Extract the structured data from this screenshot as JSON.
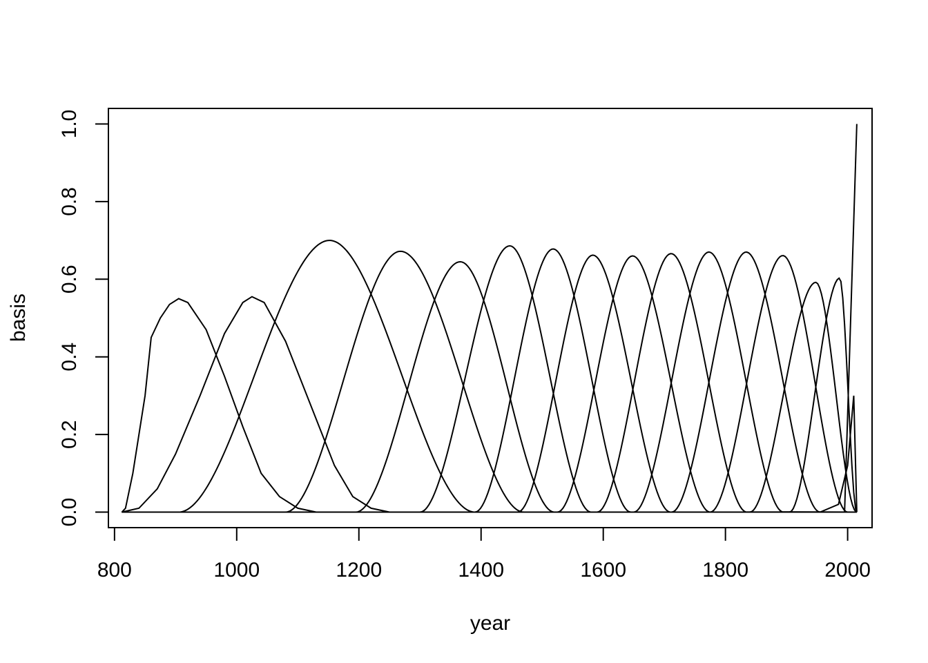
{
  "chart_data": {
    "type": "line",
    "title": "",
    "xlabel": "year",
    "ylabel": "basis",
    "xlim": [
      790,
      2040
    ],
    "ylim": [
      -0.04,
      1.04
    ],
    "x_ticks": [
      800,
      1000,
      1200,
      1400,
      1600,
      1800,
      2000
    ],
    "y_ticks": [
      0.0,
      0.2,
      0.4,
      0.6,
      0.8,
      1.0
    ],
    "x_tick_labels": [
      "800",
      "1000",
      "1200",
      "1400",
      "1600",
      "1800",
      "2000"
    ],
    "y_tick_labels": [
      "0.0",
      "0.2",
      "0.4",
      "0.6",
      "0.8",
      "1.0"
    ],
    "grid": false,
    "x_range": [
      812,
      2015
    ],
    "series": [
      {
        "values": [
          [
            812,
            0
          ],
          [
            818,
            0.01
          ],
          [
            830,
            0.1
          ],
          [
            850,
            0.3
          ],
          [
            860,
            0.45
          ],
          [
            875,
            0.5
          ],
          [
            890,
            0.535
          ],
          [
            905,
            0.55
          ],
          [
            920,
            0.54
          ],
          [
            950,
            0.47
          ],
          [
            980,
            0.35
          ],
          [
            1010,
            0.22
          ],
          [
            1040,
            0.1
          ],
          [
            1070,
            0.04
          ],
          [
            1100,
            0.01
          ],
          [
            1130,
            0
          ]
        ]
      },
      {
        "values": [
          [
            812,
            0
          ],
          [
            840,
            0.01
          ],
          [
            870,
            0.06
          ],
          [
            900,
            0.15
          ],
          [
            940,
            0.3
          ],
          [
            980,
            0.46
          ],
          [
            1010,
            0.54
          ],
          [
            1025,
            0.555
          ],
          [
            1045,
            0.54
          ],
          [
            1080,
            0.44
          ],
          [
            1120,
            0.28
          ],
          [
            1160,
            0.12
          ],
          [
            1190,
            0.04
          ],
          [
            1220,
            0.01
          ],
          [
            1250,
            0
          ]
        ]
      },
      {
        "peak": [
          1152,
          0.7
        ],
        "support": [
          905,
          1390
        ]
      },
      {
        "peak": [
          1268,
          0.672
        ],
        "support": [
          1080,
          1470
        ]
      },
      {
        "peak": [
          1366,
          0.645
        ],
        "support": [
          1195,
          1520
        ]
      },
      {
        "peak": [
          1447,
          0.686
        ],
        "support": [
          1300,
          1580
        ]
      },
      {
        "peak": [
          1518,
          0.678
        ],
        "support": [
          1390,
          1645
        ]
      },
      {
        "peak": [
          1583,
          0.662
        ],
        "support": [
          1460,
          1710
        ]
      },
      {
        "peak": [
          1648,
          0.66
        ],
        "support": [
          1525,
          1775
        ]
      },
      {
        "peak": [
          1711,
          0.666
        ],
        "support": [
          1590,
          1835
        ]
      },
      {
        "peak": [
          1773,
          0.67
        ],
        "support": [
          1650,
          1895
        ]
      },
      {
        "peak": [
          1834,
          0.67
        ],
        "support": [
          1712,
          1955
        ]
      },
      {
        "peak": [
          1894,
          0.661
        ],
        "support": [
          1775,
          2000
        ]
      },
      {
        "peak": [
          1948,
          0.592
        ],
        "support": [
          1840,
          2015
        ]
      },
      {
        "peak": [
          1987,
          0.603
        ],
        "support": [
          1905,
          2015
        ]
      },
      {
        "values": [
          [
            1955,
            0
          ],
          [
            1985,
            0.02
          ],
          [
            2000,
            0.12
          ],
          [
            2010,
            0.3
          ],
          [
            2015,
            0
          ]
        ]
      },
      {
        "values": [
          [
            1995,
            0
          ],
          [
            2015,
            1.0
          ]
        ]
      }
    ]
  }
}
